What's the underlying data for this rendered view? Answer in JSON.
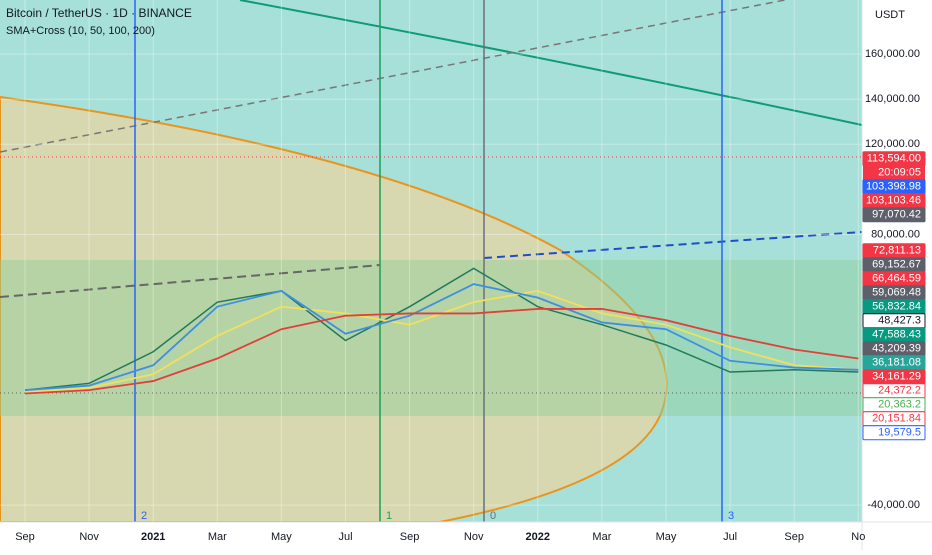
{
  "chart_data": {
    "type": "line",
    "title": "Bitcoin / TetherUS · 1D · BINANCE",
    "subtitle": "SMA+Cross (10, 50, 100, 200)",
    "currency": "USDT",
    "categories": [
      "Sep",
      "Nov",
      "2021",
      "Mar",
      "May",
      "Jul",
      "Sep",
      "Nov",
      "2022",
      "Mar",
      "May",
      "Jul",
      "Sep",
      "No"
    ],
    "series": [
      {
        "color": "#1f7a5c",
        "values": [
          11000,
          14000,
          28000,
          50000,
          55000,
          33000,
          48000,
          65000,
          48000,
          40000,
          31000,
          19000,
          20000,
          19000
        ]
      },
      {
        "color": "#f2e05c",
        "values": [
          10000,
          12000,
          18000,
          35000,
          48000,
          45000,
          40000,
          50000,
          55000,
          45000,
          40000,
          30000,
          22000,
          20000
        ]
      },
      {
        "color": "#3f8fe0",
        "values": [
          11000,
          13000,
          22000,
          48000,
          55000,
          36000,
          44000,
          58000,
          52000,
          41000,
          38000,
          24000,
          21000,
          20000
        ]
      },
      {
        "color": "#e0403a",
        "values": [
          9500,
          11000,
          15000,
          25000,
          38000,
          44000,
          45000,
          45000,
          47000,
          47000,
          42000,
          35000,
          29000,
          25000
        ]
      }
    ],
    "ylim": [
      -47500,
      184000
    ],
    "yticks": [
      {
        "value": 160000,
        "label": "160,000.00"
      },
      {
        "value": 140000,
        "label": "140,000.00"
      },
      {
        "value": 120000,
        "label": "120,000.00"
      },
      {
        "value": 80000,
        "label": "80,000.00"
      },
      {
        "value": -40000,
        "label": "-40,000.00"
      }
    ],
    "timer": "20:09:05",
    "price_labels": [
      {
        "value": 113594,
        "label": "113,594.00",
        "color": "#f23645",
        "style": "fill"
      },
      {
        "value": 103398.98,
        "label": "103,398.98",
        "color": "#2962ff",
        "style": "fill"
      },
      {
        "value": 103103.46,
        "label": "103,103.46",
        "color": "#f23645",
        "style": "fill"
      },
      {
        "value": 97070.42,
        "label": "97,070.42",
        "color": "#5d606b",
        "style": "fill"
      },
      {
        "value": 72811.13,
        "label": "72,811.13",
        "color": "#f23645",
        "style": "fill"
      },
      {
        "value": 69152.67,
        "label": "69,152.67",
        "color": "#5d606b",
        "style": "fill"
      },
      {
        "value": 66464.59,
        "label": "66,464.59",
        "color": "#f23645",
        "style": "fill"
      },
      {
        "value": 59069.48,
        "label": "59,069.48",
        "color": "#5d606b",
        "style": "fill"
      },
      {
        "value": 56832.84,
        "label": "56,832.84",
        "color": "#089981",
        "style": "fill"
      },
      {
        "value": 48427.3,
        "label": "48,427.3",
        "color": "#131722",
        "style": "outline"
      },
      {
        "value": 47588.43,
        "label": "47,588.43",
        "color": "#089981",
        "style": "fill"
      },
      {
        "value": 43209.39,
        "label": "43,209.39",
        "color": "#5d606b",
        "style": "fill"
      },
      {
        "value": 36181.08,
        "label": "36,181.08",
        "color": "#26a69a",
        "style": "fill"
      },
      {
        "value": 34161.29,
        "label": "34,161.29",
        "color": "#f23645",
        "style": "fill"
      },
      {
        "value": 24372.2,
        "label": "24,372.2",
        "color": "#f23645",
        "style": "outline"
      },
      {
        "value": 20363.2,
        "label": "20,363.2",
        "color": "#4caf50",
        "style": "outline"
      },
      {
        "value": 20151.84,
        "label": "20,151.84",
        "color": "#f23645",
        "style": "outline"
      },
      {
        "value": 19579.5,
        "label": "19,579.5",
        "color": "#2962ff",
        "style": "outline"
      }
    ],
    "annotations": [
      {
        "label": "2",
        "color": "#2962ff"
      },
      {
        "label": "1",
        "color": "#1e9e5a"
      },
      {
        "label": "0",
        "color": "#6b6f7a"
      },
      {
        "label": "3",
        "color": "#2962ff"
      }
    ],
    "grid": true
  }
}
